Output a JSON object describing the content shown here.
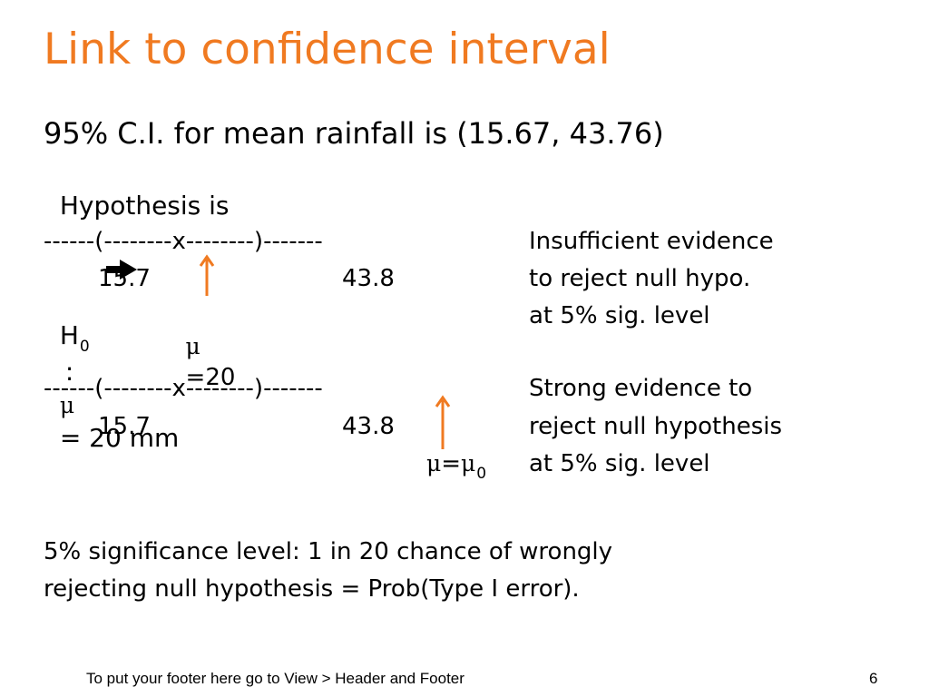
{
  "slide": {
    "title": "Link to confidence interval",
    "ci_statement": "95% C.I. for mean rainfall is (15.67, 43.76)",
    "hypothesis": {
      "prefix": "Hypothesis is",
      "arrow_icon": "arrow-right-icon",
      "h_symbol": "H",
      "h_subscript": "0",
      "colon": ":",
      "mu_symbol": "μ",
      "rest": "= 20 mm"
    },
    "example1": {
      "interval_line": "------(--------x--------)-------",
      "lower": "15.7",
      "upper": "43.8",
      "mu_symbol": "μ",
      "mu_value": "=20",
      "conclusion": [
        "Insufficient evidence",
        "to reject null hypo.",
        "at 5% sig. level"
      ]
    },
    "example2": {
      "interval_line": "------(--------x--------)-------",
      "lower": "15.7",
      "upper": "43.8",
      "mu_symbol": "μ",
      "equals": "=",
      "mu0_symbol": "μ",
      "mu0_subscript": "0",
      "conclusion": [
        "Strong evidence to",
        "reject null hypothesis",
        "at 5% sig. level"
      ]
    },
    "significance_note": [
      "5% significance level: 1 in 20 chance of wrongly",
      "rejecting null hypothesis = Prob(Type I error)."
    ],
    "footer_text": "To put your footer here go to View > Header and Footer",
    "page_number": "6",
    "colors": {
      "accent": "#f07a21",
      "text": "#000000",
      "background": "#ffffff"
    }
  }
}
